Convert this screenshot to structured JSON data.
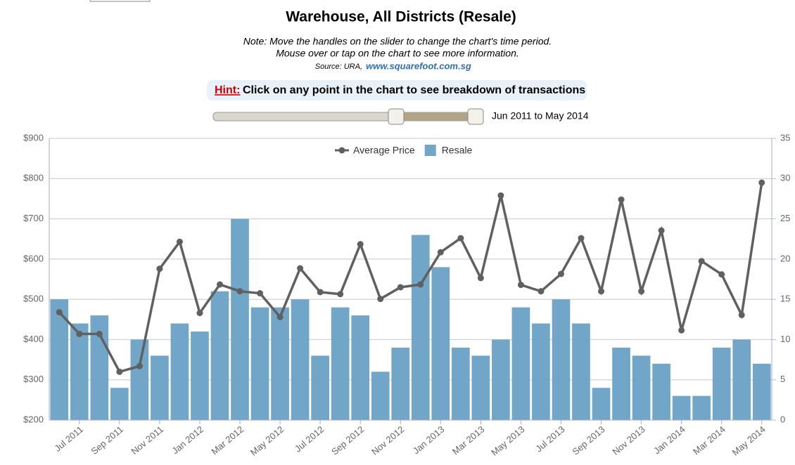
{
  "header": {
    "title": "Warehouse, All Districts (Resale)",
    "note_line1": "Note: Move the handles on the slider to change the chart's time period.",
    "note_line2": "Mouse over or tap on the chart to see more information.",
    "source": "Source: URA,",
    "source_link": "www.squarefoot.com.sg",
    "hint_label": "Hint:",
    "hint_text": "Click on any point in the chart to see breakdown of transactions",
    "slider_range": "Jun 2011 to May 2014"
  },
  "chart_data": {
    "type": "bar-line",
    "categories": [
      null,
      "Jul 2011",
      null,
      "Sep 2011",
      null,
      "Nov 2011",
      null,
      "Jan 2012",
      null,
      "Mar 2012",
      null,
      "May 2012",
      null,
      "Jul 2012",
      null,
      "Sep 2012",
      null,
      "Nov 2012",
      null,
      "Jan 2013",
      null,
      "Mar 2013",
      null,
      "May 2013",
      null,
      "Jul 2013",
      null,
      "Sep 2013",
      null,
      "Nov 2013",
      null,
      "Jan 2014",
      null,
      "Mar 2014",
      null,
      "May 2014"
    ],
    "series": [
      {
        "name": "Average Price",
        "type": "line",
        "color": "#606060",
        "values": [
          468,
          414,
          414,
          320,
          334,
          576,
          643,
          466,
          537,
          520,
          515,
          456,
          577,
          518,
          513,
          637,
          501,
          530,
          537,
          617,
          652,
          553,
          758,
          536,
          520,
          563,
          652,
          520,
          748,
          520,
          671,
          423,
          595,
          562,
          461,
          790
        ]
      },
      {
        "name": "Resale",
        "type": "bar",
        "axis": "y2",
        "color": "#72a6c8",
        "values": [
          15,
          12,
          13,
          4,
          10,
          8,
          12,
          11,
          16,
          25,
          14,
          14,
          15,
          8,
          14,
          13,
          6,
          9,
          23,
          19,
          9,
          8,
          10,
          14,
          12,
          15,
          12,
          4,
          9,
          8,
          7,
          3,
          3,
          9,
          10,
          7
        ]
      }
    ],
    "ylim": [
      200,
      900
    ],
    "yticks": [
      {
        "value": 200,
        "label": "$200"
      },
      {
        "value": 300,
        "label": "$300"
      },
      {
        "value": 400,
        "label": "$400"
      },
      {
        "value": 500,
        "label": "$500"
      },
      {
        "value": 600,
        "label": "$600"
      },
      {
        "value": 700,
        "label": "$700"
      },
      {
        "value": 800,
        "label": "$800"
      },
      {
        "value": 900,
        "label": "$900"
      }
    ],
    "y2lim": [
      0,
      35
    ],
    "y2ticks": [
      0,
      5,
      10,
      15,
      20,
      25,
      30,
      35
    ],
    "grid": true,
    "legend": "top"
  }
}
